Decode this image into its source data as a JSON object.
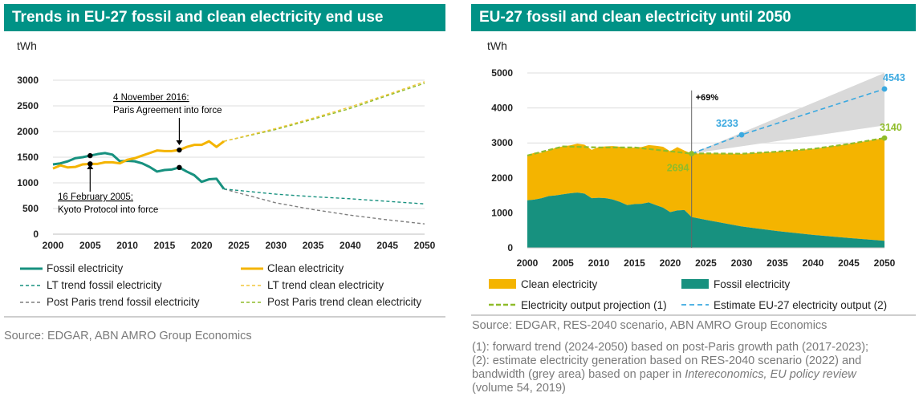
{
  "colors": {
    "header_bg": "#009286",
    "fossil": "#17917f",
    "clean": "#f4b400",
    "lt_fossil": "#17917f",
    "lt_clean": "#f0c63a",
    "pp_fossil": "#7f7f7f",
    "pp_clean": "#8fbc2a",
    "estimate": "#3ba9e0",
    "band": "#d9d9d9",
    "projection": "#8fbc2a"
  },
  "left": {
    "title": "Trends in EU-27 fossil and clean electricity end use",
    "source": "Source: EDGAR, ABN AMRO Group Economics"
  },
  "right": {
    "title": "EU-27 fossil and clean electricity until 2050",
    "source": "Source: EDGAR, RES-2040 scenario, ABN AMRO Group Economics",
    "note1": "(1): forward trend (2024-2050) based on post-Paris growth path (2017-2023);",
    "note2": "(2): estimate electricity generation based on RES-2040 scenario (2022) and",
    "note3a": "bandwidth (grey area) based on paper in ",
    "note3b": "Intereconomics, EU policy review",
    "note4": "(volume 54, 2019)"
  },
  "chart_data": [
    {
      "type": "line",
      "title": "Trends in EU-27 fossil and clean electricity end use",
      "ylabel": "tWh",
      "xlabel": "",
      "xlim": [
        2000,
        2050
      ],
      "ylim": [
        0,
        3000
      ],
      "xticks": [
        "2000",
        "2005",
        "2010",
        "2015",
        "2020",
        "2025",
        "2030",
        "2035",
        "2040",
        "2045",
        "2050"
      ],
      "yticks": [
        "0",
        "500",
        "1000",
        "1500",
        "2000",
        "2500",
        "3000"
      ],
      "grid": "horizontal",
      "legend_position": "bottom",
      "series": [
        {
          "name": "Fossil electricity",
          "style": "solid",
          "color_key": "fossil",
          "x": [
            2000,
            2001,
            2002,
            2003,
            2004,
            2005,
            2006,
            2007,
            2008,
            2009,
            2010,
            2011,
            2012,
            2013,
            2014,
            2015,
            2016,
            2017,
            2018,
            2019,
            2020,
            2021,
            2022,
            2023
          ],
          "y": [
            1360,
            1380,
            1420,
            1480,
            1500,
            1530,
            1560,
            1580,
            1550,
            1420,
            1430,
            1420,
            1380,
            1310,
            1220,
            1250,
            1260,
            1300,
            1220,
            1150,
            1020,
            1070,
            1080,
            880
          ]
        },
        {
          "name": "Clean electricity",
          "style": "solid",
          "color_key": "clean",
          "x": [
            2000,
            2001,
            2002,
            2003,
            2004,
            2005,
            2006,
            2007,
            2008,
            2009,
            2010,
            2011,
            2012,
            2013,
            2014,
            2015,
            2016,
            2017,
            2018,
            2019,
            2020,
            2021,
            2022,
            2023
          ],
          "y": [
            1280,
            1340,
            1300,
            1310,
            1360,
            1370,
            1370,
            1400,
            1400,
            1380,
            1450,
            1480,
            1530,
            1580,
            1630,
            1620,
            1620,
            1640,
            1700,
            1740,
            1740,
            1810,
            1700,
            1810
          ]
        },
        {
          "name": "LT trend fossil electricity",
          "style": "dashed",
          "color_key": "lt_fossil",
          "x": [
            2023,
            2030,
            2035,
            2040,
            2045,
            2050
          ],
          "y": [
            880,
            780,
            730,
            690,
            640,
            590
          ]
        },
        {
          "name": "LT trend clean electricity",
          "style": "dashed",
          "color_key": "lt_clean",
          "x": [
            2023,
            2030,
            2035,
            2040,
            2045,
            2050
          ],
          "y": [
            1810,
            2060,
            2260,
            2480,
            2720,
            2970
          ]
        },
        {
          "name": "Post Paris trend fossil electricity",
          "style": "dashed",
          "color_key": "pp_fossil",
          "x": [
            2023,
            2030,
            2035,
            2040,
            2045,
            2050
          ],
          "y": [
            880,
            610,
            480,
            370,
            280,
            200
          ]
        },
        {
          "name": "Post Paris trend clean electricity",
          "style": "dashed",
          "color_key": "pp_clean",
          "x": [
            2023,
            2030,
            2035,
            2040,
            2045,
            2050
          ],
          "y": [
            1810,
            2040,
            2240,
            2450,
            2700,
            2940
          ]
        }
      ],
      "markers": [
        {
          "x": 2005,
          "y": 1530
        },
        {
          "x": 2005,
          "y": 1370
        },
        {
          "x": 2017,
          "y": 1640
        },
        {
          "x": 2017,
          "y": 1300
        }
      ],
      "annotations": [
        {
          "line1": "4 November 2016:",
          "line2": "Paris Agreement into force",
          "x": 2017
        },
        {
          "line1": "16 February 2005:",
          "line2": "Kyoto Protocol into force",
          "x": 2005
        }
      ]
    },
    {
      "type": "area",
      "title": "EU-27 fossil and clean electricity until 2050",
      "ylabel": "tWh",
      "xlabel": "",
      "xlim": [
        2000,
        2050
      ],
      "ylim": [
        0,
        5000
      ],
      "xticks": [
        "2000",
        "2005",
        "2010",
        "2015",
        "2020",
        "2025",
        "2030",
        "2035",
        "2040",
        "2045",
        "2050"
      ],
      "yticks": [
        "0",
        "1000",
        "2000",
        "3000",
        "4000",
        "5000"
      ],
      "grid": "horizontal",
      "legend_position": "bottom",
      "x": [
        2000,
        2001,
        2002,
        2003,
        2004,
        2005,
        2006,
        2007,
        2008,
        2009,
        2010,
        2011,
        2012,
        2013,
        2014,
        2015,
        2016,
        2017,
        2018,
        2019,
        2020,
        2021,
        2022,
        2023,
        2025,
        2030,
        2035,
        2040,
        2045,
        2050
      ],
      "series": [
        {
          "name": "Fossil electricity",
          "color_key": "fossil",
          "values": [
            1360,
            1380,
            1420,
            1480,
            1500,
            1530,
            1560,
            1580,
            1550,
            1420,
            1430,
            1420,
            1380,
            1310,
            1220,
            1250,
            1260,
            1300,
            1220,
            1150,
            1020,
            1070,
            1080,
            880,
            800,
            610,
            480,
            370,
            280,
            200
          ]
        },
        {
          "name": "Clean electricity",
          "color_key": "clean",
          "values": [
            1280,
            1340,
            1300,
            1310,
            1360,
            1370,
            1370,
            1400,
            1400,
            1380,
            1450,
            1480,
            1530,
            1580,
            1630,
            1620,
            1620,
            1640,
            1700,
            1740,
            1740,
            1810,
            1700,
            1814,
            1900,
            2080,
            2270,
            2460,
            2690,
            2940
          ]
        },
        {
          "name": "Electricity output projection (1)",
          "style": "dashed",
          "color_key": "projection",
          "x": [
            2000,
            2005,
            2010,
            2015,
            2020,
            2023,
            2025,
            2030,
            2035,
            2040,
            2045,
            2050
          ],
          "values": [
            2640,
            2900,
            2870,
            2870,
            2760,
            2694,
            2700,
            2690,
            2750,
            2830,
            2970,
            3140
          ]
        },
        {
          "name": "Estimate EU-27 electricity output (2)",
          "style": "dashed",
          "color_key": "estimate",
          "x": [
            2023,
            2030,
            2050
          ],
          "values": [
            2694,
            3233,
            4543
          ]
        }
      ],
      "band": {
        "x": [
          2023,
          2050
        ],
        "upper": [
          2694,
          5000
        ],
        "lower": [
          2694,
          3500
        ]
      },
      "markers": [
        {
          "x": 2030,
          "y": 3233,
          "label": "3233",
          "color_key": "estimate"
        },
        {
          "x": 2050,
          "y": 4543,
          "label": "4543",
          "color_key": "estimate"
        },
        {
          "x": 2023,
          "y": 2694,
          "label": "2694",
          "color_key": "projection"
        },
        {
          "x": 2050,
          "y": 3140,
          "label": "3140",
          "color_key": "projection"
        }
      ],
      "reference_line": {
        "x": 2023,
        "label": "+69%"
      }
    }
  ]
}
